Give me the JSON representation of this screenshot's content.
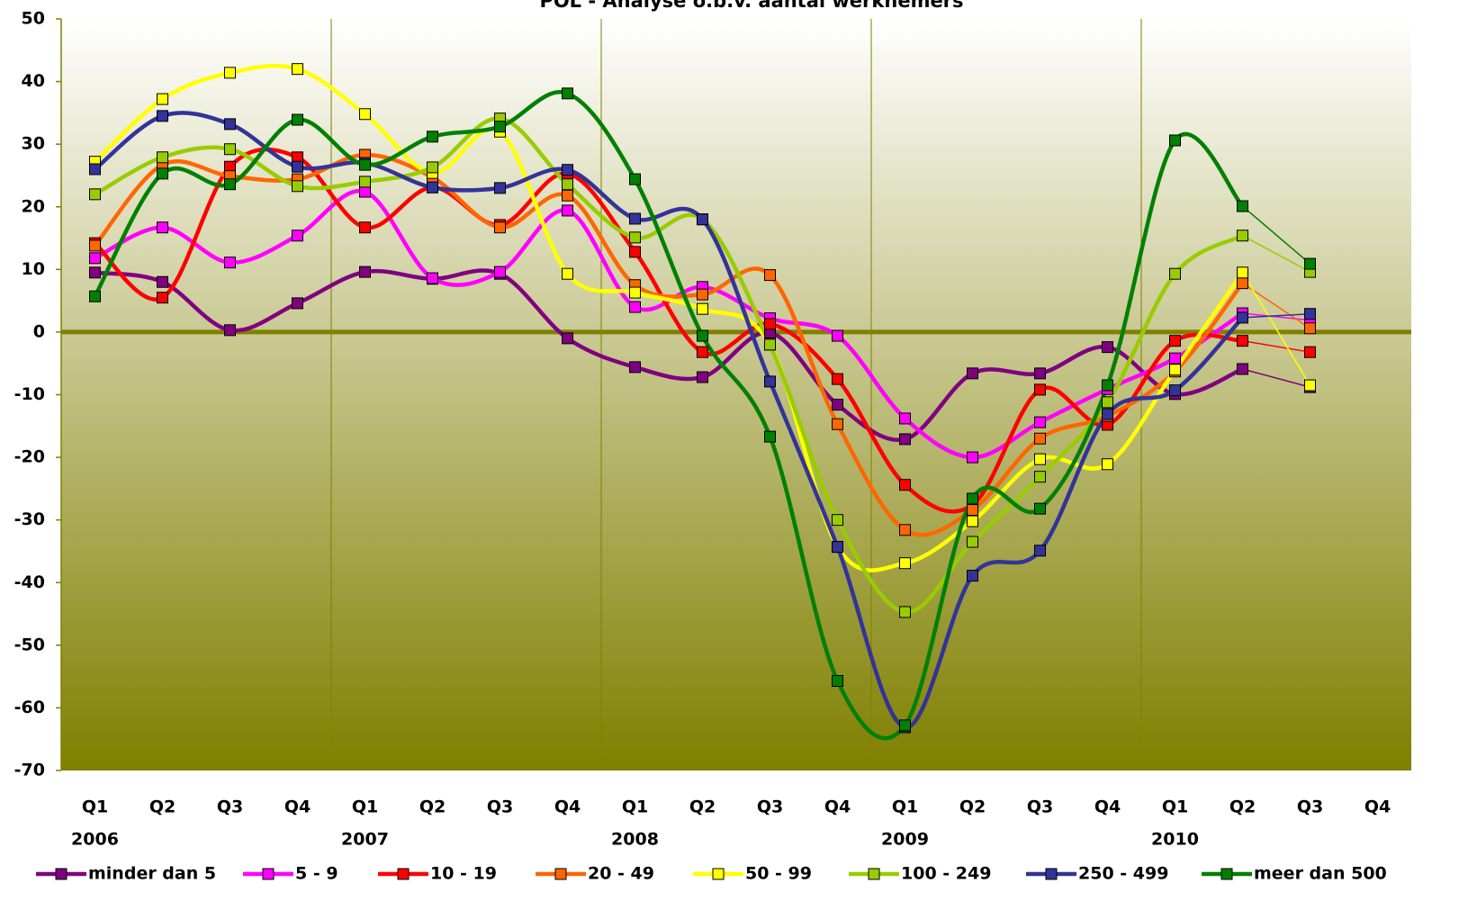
{
  "chart_data": {
    "type": "line",
    "title": "POL - Analyse o.b.v. aantal werknemers",
    "categories": [
      "Q1",
      "Q2",
      "Q3",
      "Q4",
      "Q1",
      "Q2",
      "Q3",
      "Q4",
      "Q1",
      "Q2",
      "Q3",
      "Q4",
      "Q1",
      "Q2",
      "Q3",
      "Q4",
      "Q1",
      "Q2",
      "Q3",
      "Q4"
    ],
    "years": [
      "2006",
      "2007",
      "2008",
      "2009",
      "2010"
    ],
    "ylim": [
      -70,
      50
    ],
    "yticks": [
      -70,
      -60,
      -50,
      -40,
      -30,
      -20,
      -10,
      0,
      10,
      20,
      30,
      40,
      50
    ],
    "legend": "bottom",
    "series": [
      {
        "name": "minder dan 5",
        "color": "#800080",
        "values": [
          9.5,
          8,
          0.3,
          4.6,
          9.6,
          8.5,
          9.3,
          -1,
          -5.6,
          -7.2,
          -0.1,
          -11.6,
          -17.1,
          -6.6,
          -6.6,
          -2.4,
          -9.9,
          -5.9,
          -8.8,
          null
        ]
      },
      {
        "name": "5 - 9",
        "color": "#ff00ff",
        "values": [
          11.8,
          16.7,
          11.1,
          15.4,
          22.4,
          8.6,
          9.6,
          19.4,
          4.0,
          7.2,
          2.2,
          -0.6,
          -13.8,
          -20,
          -14.4,
          -9.1,
          -4.2,
          3.0,
          1.9,
          null
        ]
      },
      {
        "name": "10 - 19",
        "color": "#ff0000",
        "values": [
          14.2,
          5.5,
          26.4,
          27.9,
          16.7,
          23.1,
          17.1,
          25.3,
          12.8,
          -3.2,
          1.3,
          -7.5,
          -24.4,
          -27.6,
          -9.2,
          -14.8,
          -1.4,
          -1.4,
          -3.2,
          null
        ]
      },
      {
        "name": "20 - 49",
        "color": "#ff6600",
        "values": [
          13.8,
          26.7,
          24.9,
          24.4,
          28.3,
          24.7,
          16.7,
          21.8,
          7.5,
          6.0,
          9.1,
          -14.7,
          -31.6,
          -28.4,
          -17.0,
          -13.4,
          -6.3,
          7.8,
          0.6,
          null
        ]
      },
      {
        "name": "50 - 99",
        "color": "#ffff00",
        "values": [
          27.2,
          37.2,
          41.4,
          42,
          34.8,
          25.4,
          32.0,
          9.3,
          6.3,
          3.7,
          -2.0,
          -34.3,
          -36.9,
          -30.2,
          -20.3,
          -21.1,
          -6.0,
          9.5,
          -8.5,
          null
        ]
      },
      {
        "name": "100 - 249",
        "color": "#99cc00",
        "values": [
          22,
          27.9,
          29.2,
          23.3,
          24.0,
          26.3,
          34.1,
          23.6,
          15.1,
          18.0,
          -2.0,
          -30.0,
          -44.7,
          -33.5,
          -23.1,
          -11.2,
          9.3,
          15.4,
          9.6,
          null
        ]
      },
      {
        "name": "250 - 499",
        "color": "#333399",
        "values": [
          26,
          34.5,
          33.2,
          26.4,
          27.0,
          23.1,
          23.0,
          25.9,
          18.1,
          18.0,
          -7.9,
          -34.3,
          -63.1,
          -38.9,
          -34.9,
          -13.1,
          -9.3,
          2.3,
          2.9,
          null
        ]
      },
      {
        "name": "meer dan 500",
        "color": "#008000",
        "values": [
          5.7,
          25.3,
          23.6,
          33.9,
          26.7,
          31.2,
          32.8,
          38.1,
          24.4,
          -0.6,
          -16.7,
          -55.7,
          -62.8,
          -26.6,
          -28.2,
          -8.5,
          30.6,
          20.1,
          10.9,
          null
        ]
      }
    ]
  }
}
